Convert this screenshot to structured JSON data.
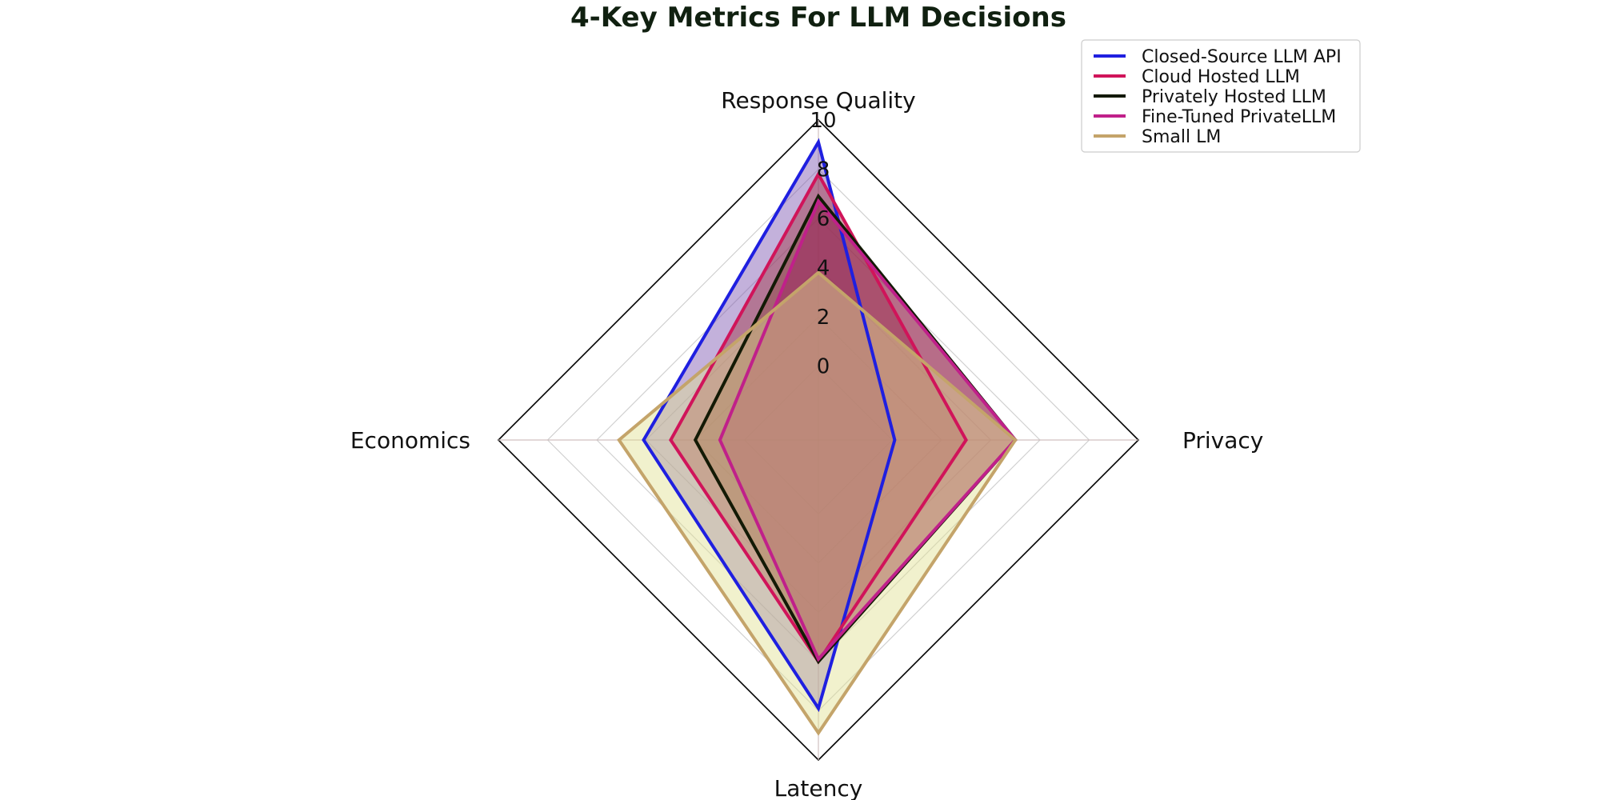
{
  "chart_data": {
    "type": "radar",
    "title": "4-Key Metrics For LLM Decisions",
    "axes": [
      "Response Quality",
      "Privacy",
      "Latency",
      "Economics"
    ],
    "rlim": [
      -3,
      10
    ],
    "ticks": [
      0,
      2,
      4,
      6,
      8,
      10
    ],
    "tick_labels": [
      "0",
      "2",
      "4",
      "6",
      "8",
      "10"
    ],
    "grid": true,
    "legend_position": "top-right",
    "series": [
      {
        "name": "Closed-Source LLM API",
        "values": [
          9.1,
          0.1,
          7.9,
          4.1
        ],
        "color": "#1f1fe0",
        "fill": "#7b52b0"
      },
      {
        "name": "Cloud Hosted LLM",
        "values": [
          7.8,
          3.0,
          6.0,
          3.0
        ],
        "color": "#d0145a",
        "fill": "#a03040"
      },
      {
        "name": "Privately Hosted LLM",
        "values": [
          6.9,
          5.0,
          6.0,
          2.0
        ],
        "color": "#131a05",
        "fill": "#8c4a40"
      },
      {
        "name": "Fine-Tuned PrivateLLM",
        "values": [
          6.7,
          5.0,
          5.9,
          1.0
        ],
        "color": "#c0208a",
        "fill": "#a02060"
      },
      {
        "name": "Small LM",
        "values": [
          3.8,
          5.0,
          8.9,
          5.1
        ],
        "color": "#c4a46a",
        "fill": "#e0e090"
      }
    ]
  }
}
